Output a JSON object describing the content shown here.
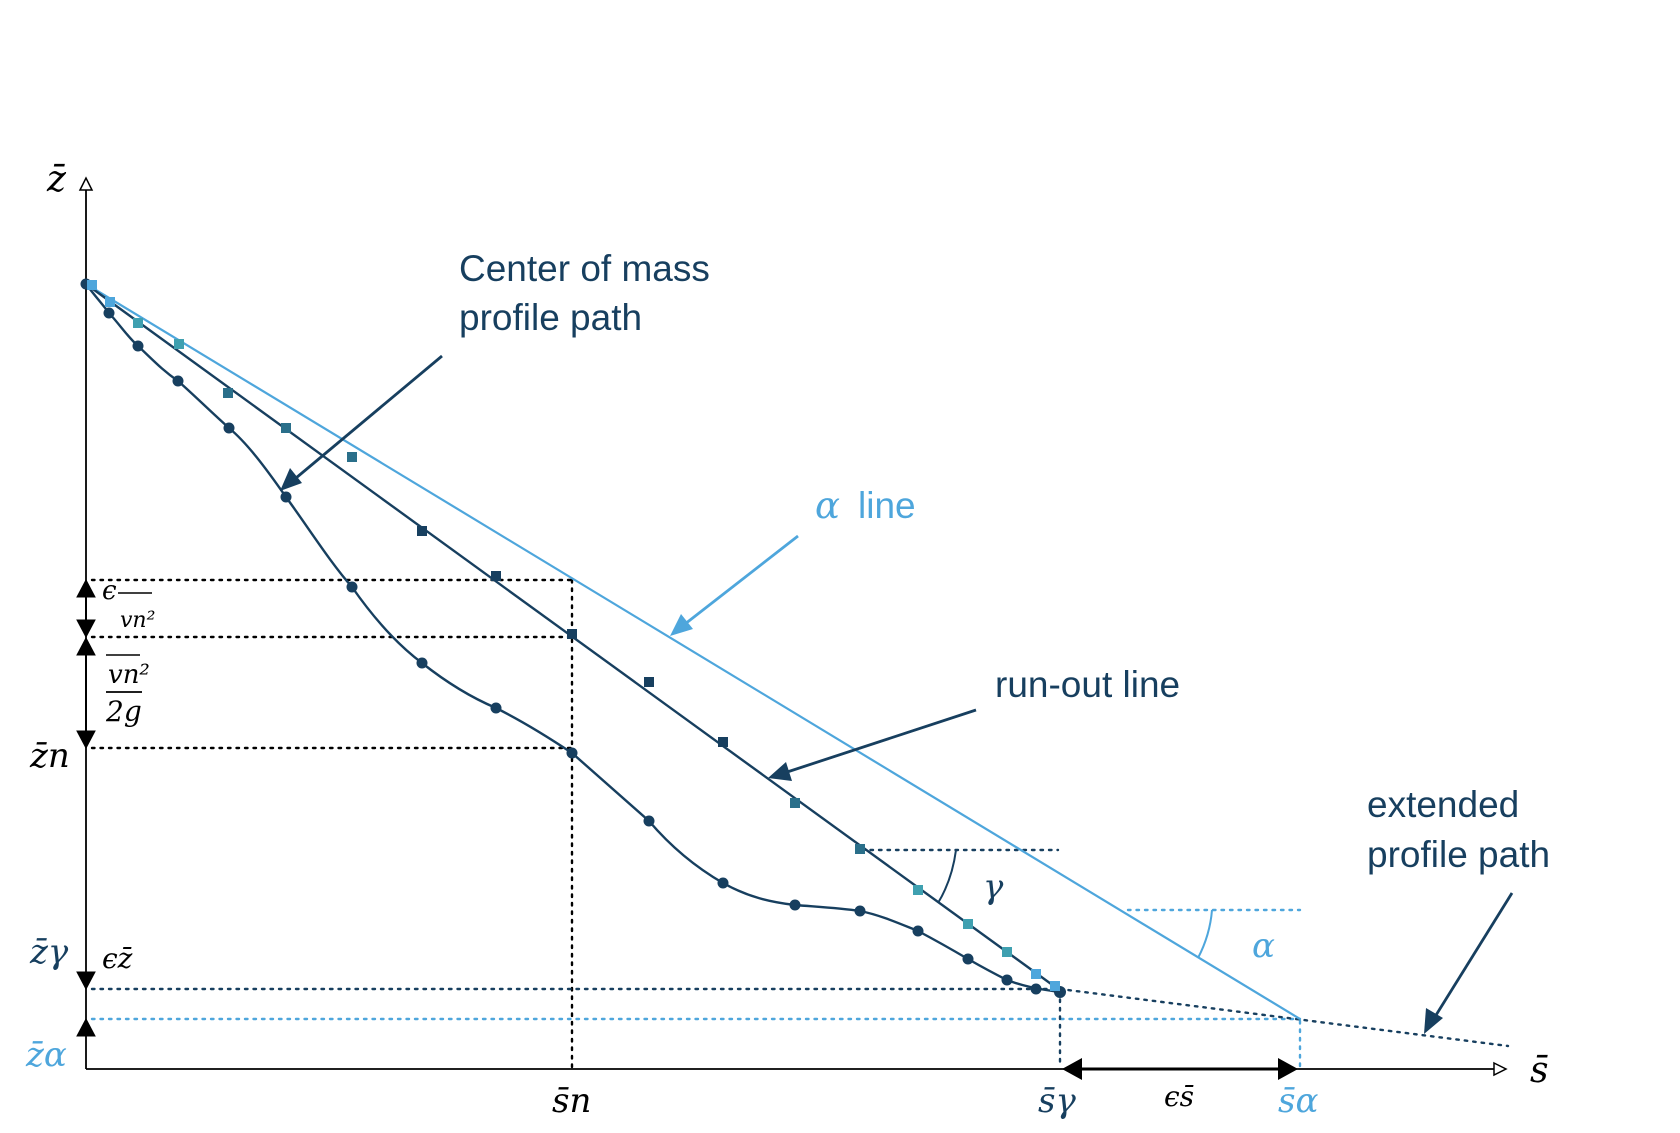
{
  "colors": {
    "dark": "#173f5f",
    "light": "#4ea6dc",
    "teal": "#2a6f8a",
    "teal_light": "#3fa0b0",
    "black": "#000000"
  },
  "labels": {
    "center_of_mass_line1": "Center of mass",
    "center_of_mass_line2": "profile path",
    "alpha_symbol": "α",
    "alpha_line_word": "line",
    "runout_line": "run-out line",
    "extended_line1": "extended",
    "extended_line2": "profile path",
    "gamma_angle": "γ",
    "alpha_angle": "α"
  },
  "axes": {
    "z_axis": "z̄",
    "s_axis": "s̄",
    "z_n": "z̄n",
    "z_gamma": "z̄γ",
    "z_alpha": "z̄α",
    "s_n": "s̄n",
    "s_gamma": "s̄γ",
    "s_alpha": "s̄α",
    "eps_z": "ϵz̄",
    "eps_s": "ϵs̄",
    "eps_v": "ϵ",
    "v_n2_over_2g_num": "vn²",
    "v_n2_over_2g_den": "2g",
    "eps_v_sub": "vn²"
  }
}
